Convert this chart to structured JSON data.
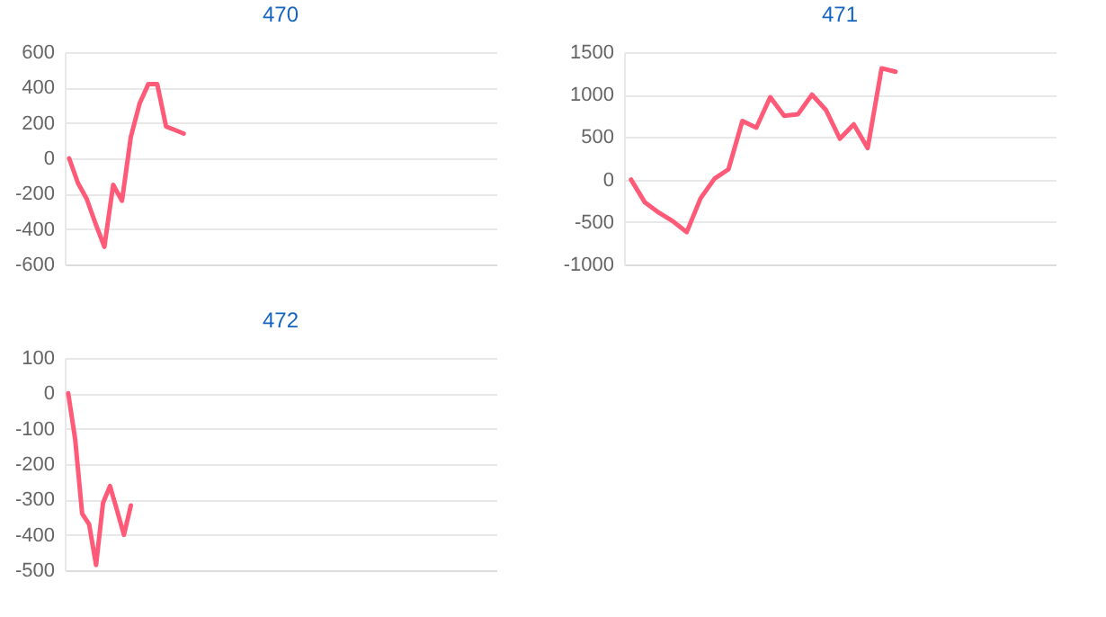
{
  "chart_data": [
    {
      "type": "line",
      "title": "470",
      "categories": [
        null,
        null,
        null,
        null,
        null,
        null,
        null,
        null,
        null,
        null,
        null,
        null,
        null,
        null,
        null,
        null,
        null,
        null,
        null,
        null,
        null,
        null,
        null,
        null,
        null,
        null,
        null,
        null,
        null,
        null,
        null,
        null,
        null,
        null,
        null,
        null,
        null,
        null,
        null,
        null,
        null,
        null,
        null,
        null,
        null,
        null,
        null,
        null,
        null
      ],
      "series": [
        {
          "color": "#ff5a78",
          "values": [
            0,
            -140,
            -230,
            -370,
            -500,
            -150,
            -240,
            120,
            310,
            420,
            420,
            180,
            160,
            140,
            null,
            null,
            null,
            null,
            null,
            null,
            null,
            null,
            null,
            null,
            null,
            null,
            null,
            null,
            null,
            null,
            null,
            null,
            null,
            null,
            null,
            null,
            null,
            null,
            null,
            null,
            null,
            null,
            null,
            null,
            null,
            null,
            null,
            null,
            null
          ]
        }
      ],
      "ylim": [
        -600,
        600
      ],
      "yticks": [
        -600,
        -400,
        -200,
        0,
        200,
        400,
        600
      ],
      "grid": "y",
      "tick_labels": "y"
    },
    {
      "type": "line",
      "title": "471",
      "categories": [
        null,
        null,
        null,
        null,
        null,
        null,
        null,
        null,
        null,
        null,
        null,
        null,
        null,
        null,
        null,
        null,
        null,
        null,
        null,
        null,
        null,
        null,
        null,
        null,
        null,
        null,
        null,
        null,
        null,
        null,
        null
      ],
      "series": [
        {
          "color": "#ff5a78",
          "values": [
            0,
            -270,
            -390,
            -490,
            -620,
            -220,
            10,
            120,
            690,
            610,
            970,
            750,
            770,
            1000,
            820,
            480,
            650,
            370,
            1310,
            1270,
            null,
            null,
            null,
            null,
            null,
            null,
            null,
            null,
            null,
            null,
            null
          ]
        }
      ],
      "ylim": [
        -1000,
        1500
      ],
      "yticks": [
        -1000,
        -500,
        0,
        500,
        1000,
        1500
      ],
      "grid": "y",
      "tick_labels": "y"
    },
    {
      "type": "line",
      "title": "472",
      "categories": [
        null,
        null,
        null,
        null,
        null,
        null,
        null,
        null,
        null,
        null,
        null,
        null,
        null,
        null,
        null,
        null,
        null,
        null,
        null,
        null,
        null,
        null,
        null,
        null,
        null,
        null,
        null,
        null,
        null,
        null,
        null,
        null,
        null,
        null,
        null,
        null,
        null,
        null,
        null,
        null,
        null,
        null,
        null,
        null,
        null,
        null,
        null,
        null,
        null,
        null,
        null,
        null,
        null,
        null,
        null,
        null,
        null,
        null,
        null,
        null,
        null,
        null
      ],
      "series": [
        {
          "color": "#ff5a78",
          "values": [
            0,
            -130,
            -340,
            -370,
            -485,
            -310,
            -262,
            -330,
            -400,
            -317,
            null,
            null,
            null,
            null,
            null,
            null,
            null,
            null,
            null,
            null,
            null,
            null,
            null,
            null,
            null,
            null,
            null,
            null,
            null,
            null,
            null,
            null,
            null,
            null,
            null,
            null,
            null,
            null,
            null,
            null,
            null,
            null,
            null,
            null,
            null,
            null,
            null,
            null,
            null,
            null,
            null,
            null,
            null,
            null,
            null,
            null,
            null,
            null,
            null,
            null,
            null,
            null
          ]
        }
      ],
      "ylim": [
        -500,
        100
      ],
      "yticks": [
        -500,
        -400,
        -300,
        -200,
        -100,
        0,
        100
      ],
      "grid": "y",
      "tick_labels": "y"
    }
  ]
}
